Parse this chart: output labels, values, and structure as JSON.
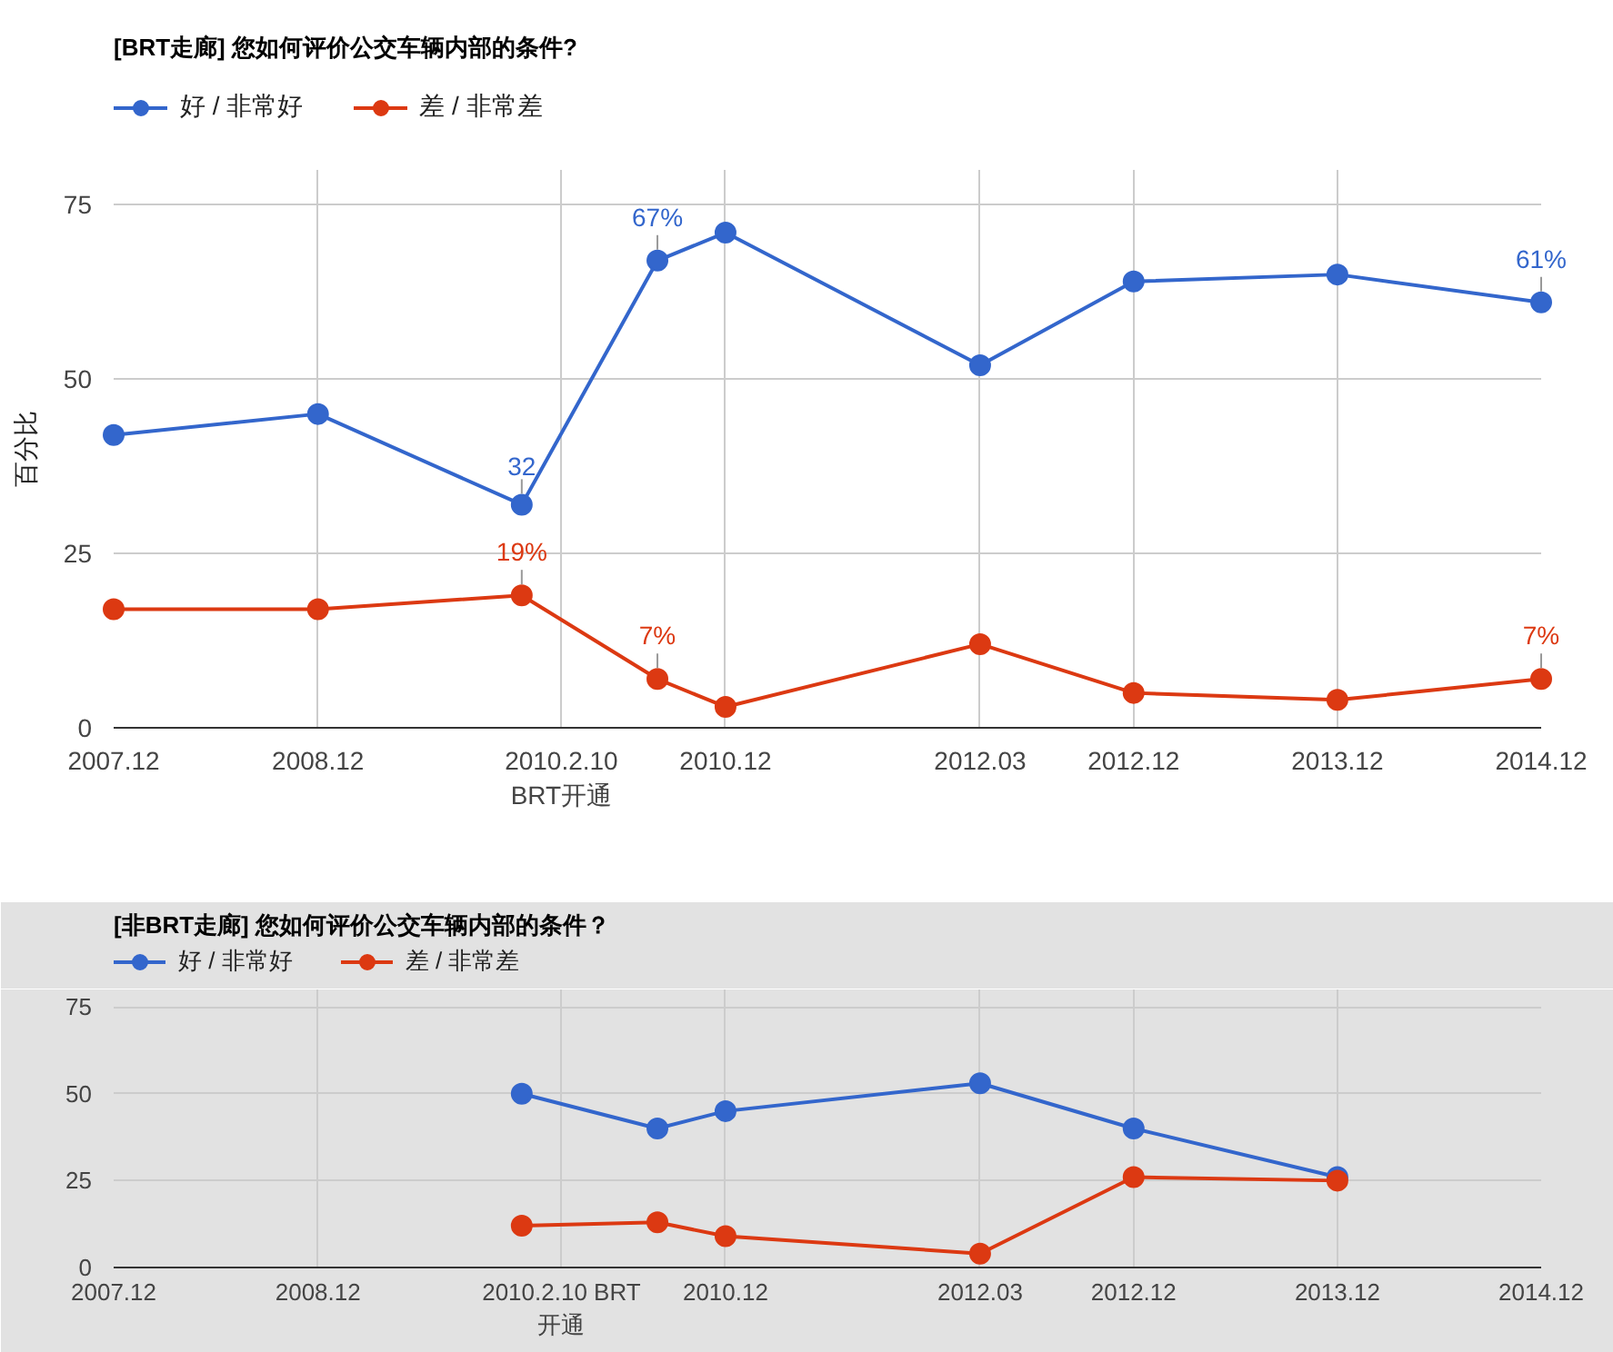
{
  "chart_data": [
    {
      "type": "line",
      "title": "[BRT走廊] 您如何评价公交车辆内部的条件?",
      "ylabel": "百分比",
      "x": [
        "2007-12",
        "2008-12",
        "2009-12",
        "2010-08",
        "2010-12",
        "2012-03",
        "2012-12",
        "2013-12",
        "2014-12"
      ],
      "xlim": [
        "2007-12",
        "2014-12"
      ],
      "xticks": [
        {
          "value": "2007-12",
          "label": "2007.12"
        },
        {
          "value": "2008-12",
          "label": "2008.12"
        },
        {
          "value": "2010-02-10",
          "label": "2010.2.10\nBRT开通"
        },
        {
          "value": "2010-12",
          "label": "2010.12"
        },
        {
          "value": "2012-03",
          "label": "2012.03"
        },
        {
          "value": "2012-12",
          "label": "2012.12"
        },
        {
          "value": "2013-12",
          "label": "2013.12"
        },
        {
          "value": "2014-12",
          "label": "2014.12"
        }
      ],
      "ylim": [
        0,
        80
      ],
      "yticks": [
        0,
        25,
        50,
        75
      ],
      "grid": true,
      "legend": "top left",
      "marker": "circle",
      "line_style": "solid",
      "series": [
        {
          "name": "好 / 非常好",
          "color": "#3366cc",
          "values": [
            42,
            45,
            32,
            67,
            71,
            52,
            64,
            65,
            61
          ],
          "value_labels": [
            null,
            null,
            "32",
            "67%",
            null,
            null,
            null,
            null,
            "61%"
          ]
        },
        {
          "name": "差 / 非常差",
          "color": "#dc3912",
          "values": [
            17,
            17,
            19,
            7,
            3,
            12,
            5,
            4,
            7
          ],
          "value_labels": [
            null,
            null,
            "19%",
            "7%",
            null,
            null,
            null,
            null,
            "7%"
          ]
        }
      ]
    },
    {
      "type": "line",
      "title": "[非BRT走廊] 您如何评价公交车辆内部的条件？",
      "x": [
        "2009-12",
        "2010-08",
        "2010-12",
        "2012-03",
        "2012-12",
        "2013-12"
      ],
      "xlim": [
        "2007-12",
        "2014-12"
      ],
      "xticks": [
        {
          "value": "2007-12",
          "label": "2007.12"
        },
        {
          "value": "2008-12",
          "label": "2008.12"
        },
        {
          "value": "2010-02-10",
          "label": "2010.2.10 BRT\n开通"
        },
        {
          "value": "2010-12",
          "label": "2010.12"
        },
        {
          "value": "2012-03",
          "label": "2012.03"
        },
        {
          "value": "2012-12",
          "label": "2012.12"
        },
        {
          "value": "2013-12",
          "label": "2013.12"
        },
        {
          "value": "2014-12",
          "label": "2014.12"
        }
      ],
      "ylim": [
        0,
        80
      ],
      "yticks": [
        0,
        25,
        50,
        75
      ],
      "grid": true,
      "legend": "top left",
      "marker": "circle",
      "line_style": "solid",
      "series": [
        {
          "name": "好 / 非常好",
          "color": "#3366cc",
          "values": [
            50,
            40,
            45,
            53,
            40,
            26
          ]
        },
        {
          "name": "差 / 非常差",
          "color": "#dc3912",
          "values": [
            12,
            13,
            9,
            4,
            26,
            25
          ]
        }
      ]
    }
  ]
}
